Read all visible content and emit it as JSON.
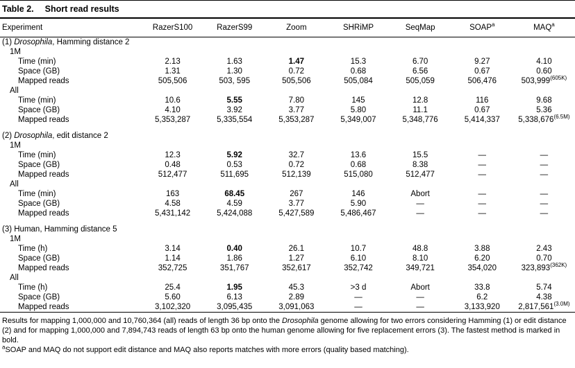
{
  "colors": {
    "background": "#ffffff",
    "text": "#000000",
    "rule": "#000000"
  },
  "title": {
    "label": "Table 2.",
    "text": "Short read results"
  },
  "table": {
    "columns": [
      {
        "t": "Experiment"
      },
      {
        "t": "RazerS100"
      },
      {
        "t": "RazerS99"
      },
      {
        "t": "Zoom"
      },
      {
        "t": "SHRiMP"
      },
      {
        "t": "SeqMap"
      },
      {
        "t": "SOAP",
        "sup": "a"
      },
      {
        "t": "MAQ",
        "sup": "a"
      }
    ],
    "rows": [
      {
        "type": "section",
        "pre": "(1) ",
        "it": "Drosophila",
        "post": ", Hamming distance 2"
      },
      {
        "type": "group",
        "label": "1M"
      },
      {
        "type": "data",
        "label": "Time (min)",
        "cells": [
          "2.13",
          "1.63",
          {
            "v": "1.47",
            "b": true
          },
          "15.3",
          "6.70",
          "9.27",
          "4.10"
        ]
      },
      {
        "type": "data",
        "label": "Space (GB)",
        "cells": [
          "1.31",
          "1.30",
          "0.72",
          "0.68",
          "6.56",
          "0.67",
          "0.60"
        ]
      },
      {
        "type": "data",
        "label": "Mapped reads",
        "cells": [
          "505,506",
          "503, 595",
          "505,506",
          "505,084",
          "505,059",
          "506,476",
          {
            "v": "503,999",
            "sup": "(605K)"
          }
        ]
      },
      {
        "type": "group",
        "label": "All"
      },
      {
        "type": "data",
        "label": "Time (min)",
        "cells": [
          "10.6",
          {
            "v": "5.55",
            "b": true
          },
          "7.80",
          "145",
          "12.8",
          "116",
          "9.68"
        ]
      },
      {
        "type": "data",
        "label": "Space (GB)",
        "cells": [
          "4.10",
          "3.92",
          "3.77",
          "5.80",
          "11.1",
          "0.67",
          "5.36"
        ]
      },
      {
        "type": "data",
        "label": "Mapped reads",
        "cells": [
          "5,353,287",
          "5,335,554",
          "5,353,287",
          "5,349,007",
          "5,348,776",
          "5,414,337",
          {
            "v": "5,338,676",
            "sup": "(6.5M)"
          }
        ]
      },
      {
        "type": "spacer"
      },
      {
        "type": "section",
        "pre": "(2) ",
        "it": "Drosophila",
        "post": ", edit distance 2"
      },
      {
        "type": "group",
        "label": "1M"
      },
      {
        "type": "data",
        "label": "Time (min)",
        "cells": [
          "12.3",
          {
            "v": "5.92",
            "b": true
          },
          "32.7",
          "13.6",
          "15.5",
          "—",
          "—"
        ]
      },
      {
        "type": "data",
        "label": "Space (GB)",
        "cells": [
          "0.48",
          "0.53",
          "0.72",
          "0.68",
          "8.38",
          "—",
          "—"
        ]
      },
      {
        "type": "data",
        "label": "Mapped reads",
        "cells": [
          "512,477",
          "511,695",
          "512,139",
          "515,080",
          "512,477",
          "—",
          "—"
        ]
      },
      {
        "type": "group",
        "label": "All"
      },
      {
        "type": "data",
        "label": "Time (min)",
        "cells": [
          "163",
          {
            "v": "68.45",
            "b": true
          },
          "267",
          "146",
          "Abort",
          "—",
          "—"
        ]
      },
      {
        "type": "data",
        "label": "Space (GB)",
        "cells": [
          "4.58",
          "4.59",
          "3.77",
          "5.90",
          "—",
          "—",
          "—"
        ]
      },
      {
        "type": "data",
        "label": "Mapped reads",
        "cells": [
          "5,431,142",
          "5,424,088",
          "5,427,589",
          "5,486,467",
          "—",
          "—",
          "—"
        ]
      },
      {
        "type": "spacer"
      },
      {
        "type": "section",
        "pre": "(3) Human, Hamming distance 5"
      },
      {
        "type": "group",
        "label": "1M"
      },
      {
        "type": "data",
        "label": "Time (h)",
        "cells": [
          "3.14",
          {
            "v": "0.40",
            "b": true
          },
          "26.1",
          "10.7",
          "48.8",
          "3.88",
          "2.43"
        ]
      },
      {
        "type": "data",
        "label": "Space (GB)",
        "cells": [
          "1.14",
          "1.86",
          "1.27",
          "6.10",
          "8.10",
          "6.20",
          "0.70"
        ]
      },
      {
        "type": "data",
        "label": "Mapped reads",
        "cells": [
          "352,725",
          "351,767",
          "352,617",
          "352,742",
          "349,721",
          "354,020",
          {
            "v": "323,893",
            "sup": "(362K)"
          }
        ]
      },
      {
        "type": "group",
        "label": "All"
      },
      {
        "type": "data",
        "label": "Time (h)",
        "cells": [
          "25.4",
          {
            "v": "1.95",
            "b": true
          },
          "45.3",
          ">3 d",
          "Abort",
          "33.8",
          "5.74"
        ]
      },
      {
        "type": "data",
        "label": "Space (GB)",
        "cells": [
          "5.60",
          "6.13",
          "2.89",
          "—",
          "—",
          "6.2",
          "4.38"
        ]
      },
      {
        "type": "data",
        "label": "Mapped reads",
        "cells": [
          "3,102,320",
          "3,095,435",
          "3,091,063",
          "—",
          "—",
          "3,133,920",
          {
            "v": "2,817,561",
            "sup": "(3.0M)"
          }
        ]
      }
    ]
  },
  "footer": {
    "paragraph": [
      {
        "t": "Results for mapping 1,000,000 and 10,760,364 (all) reads of length 36 bp onto the "
      },
      {
        "t": "Drosophila",
        "i": true
      },
      {
        "t": " genome allowing for two errors considering Hamming (1) or edit distance (2) and for mapping 1,000,000 and 7,894,743 reads of length 63 bp onto the human genome allowing for five replacement errors (3). The fastest method is marked in bold."
      }
    ],
    "footnote": {
      "sup": "a",
      "text": "SOAP and MAQ do not support edit distance and MAQ also reports matches with more errors (quality based matching)."
    }
  }
}
